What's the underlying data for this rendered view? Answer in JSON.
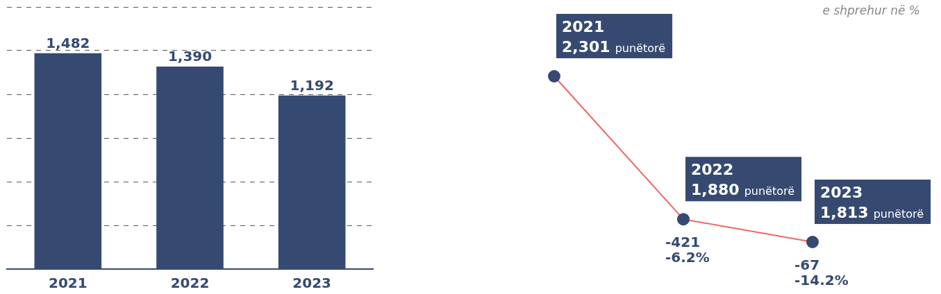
{
  "chart_data": [
    {
      "type": "bar",
      "categories": [
        "2021",
        "2022",
        "2023"
      ],
      "values": [
        1482,
        1390,
        1192
      ],
      "color": "#364a71",
      "value_labels": [
        "1,482",
        "1,390",
        "1,192"
      ],
      "ylim": [
        0,
        1800
      ],
      "yticks": [
        {
          "value": 300,
          "label": null
        },
        {
          "value": 600,
          "label": null
        },
        {
          "value": 900,
          "label": null
        },
        {
          "value": 1200,
          "label": null
        },
        {
          "value": 1500,
          "label": null
        },
        {
          "value": 1800,
          "label": null
        }
      ],
      "tick_labels": "x",
      "grid": "y"
    },
    {
      "type": "line",
      "subtitle": "e shprehur në %",
      "categories": [
        null,
        null,
        null
      ],
      "series": [
        {
          "color": "#f06666",
          "values": [
            2301,
            1880,
            1813
          ],
          "value_labels": [
            "2,301 punëtorë",
            "1,880 punëtorë",
            "1,813 punëtorë"
          ]
        }
      ],
      "marker": "circle",
      "tick_labels": false,
      "grid": false,
      "annotations": [
        "2021",
        "2022",
        "2023",
        {
          "text": "-421\n-6.2%",
          "y": 1880
        },
        {
          "text": "-67\n-14.2%",
          "y": 1813
        }
      ]
    }
  ]
}
